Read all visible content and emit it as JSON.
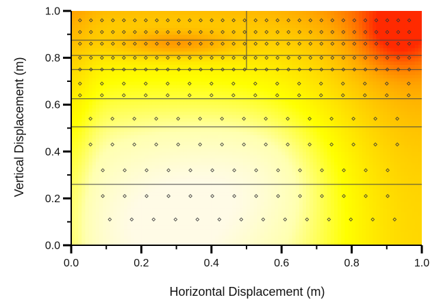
{
  "chart_data": {
    "type": "heatmap",
    "title": "",
    "xlabel": "Horizontal Displacement (m)",
    "ylabel": "Vertical Displacement (m)",
    "xlim": [
      0,
      1
    ],
    "ylim": [
      0,
      1
    ],
    "x_ticks": [
      "0.0",
      "0.2",
      "0.4",
      "0.6",
      "0.8",
      "1.0"
    ],
    "y_ticks": [
      "0.0",
      "0.2",
      "0.4",
      "0.6",
      "0.8",
      "1.0"
    ],
    "grid": false,
    "colormap": [
      "#fffbe6",
      "#ffffb0",
      "#ffff00",
      "#ffd200",
      "#ffa600",
      "#ff6e00",
      "#ff2a00"
    ],
    "horizontal_lines_y": [
      0.875,
      0.81,
      0.75,
      0.625,
      0.505,
      0.26
    ],
    "vertical_line": {
      "x": 0.5,
      "y_range": [
        0.75,
        1.0
      ]
    },
    "sensor_rows": [
      {
        "y": 0.96,
        "x_start": 0.025,
        "x_step": 0.0313,
        "count": 31
      },
      {
        "y": 0.91,
        "x_start": 0.025,
        "x_step": 0.0313,
        "count": 31
      },
      {
        "y": 0.86,
        "x_start": 0.025,
        "x_step": 0.0313,
        "count": 31
      },
      {
        "y": 0.8,
        "x_start": 0.025,
        "x_step": 0.0313,
        "count": 31
      },
      {
        "y": 0.75,
        "x_start": 0.025,
        "x_step": 0.0313,
        "count": 31
      },
      {
        "y": 0.69,
        "x_start": 0.025,
        "x_step": 0.0625,
        "count": 16
      },
      {
        "y": 0.64,
        "x_start": 0.025,
        "x_step": 0.0625,
        "count": 16
      },
      {
        "y": 0.54,
        "x_start": 0.055,
        "x_step": 0.0625,
        "count": 15
      },
      {
        "y": 0.43,
        "x_start": 0.055,
        "x_step": 0.0625,
        "count": 15
      },
      {
        "y": 0.32,
        "x_start": 0.09,
        "x_step": 0.0625,
        "count": 14
      },
      {
        "y": 0.21,
        "x_start": 0.09,
        "x_step": 0.0625,
        "count": 14
      },
      {
        "y": 0.11,
        "x_start": 0.11,
        "x_step": 0.0625,
        "count": 14
      }
    ]
  }
}
